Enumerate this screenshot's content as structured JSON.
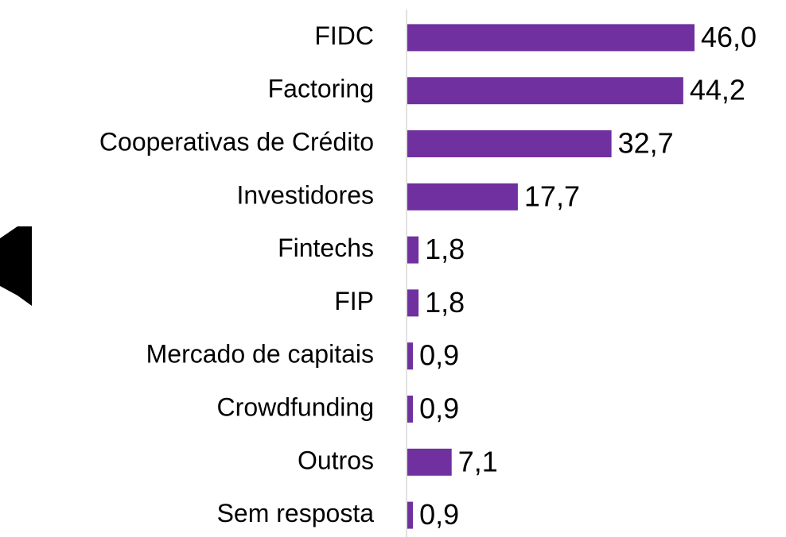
{
  "chart_data": {
    "type": "barh",
    "categories": [
      "FIDC",
      "Factoring",
      "Cooperativas de Crédito",
      "Investidores",
      "Fintechs",
      "FIP",
      "Mercado de capitais",
      "Crowdfunding",
      "Outros",
      "Sem resposta"
    ],
    "values": [
      46.0,
      44.2,
      32.7,
      17.7,
      1.8,
      1.8,
      0.9,
      0.9,
      7.1,
      0.9
    ],
    "value_labels": [
      "46,0",
      "44,2",
      "32,7",
      "17,7",
      "1,8",
      "1,8",
      "0,9",
      "0,9",
      "7,1",
      "0,9"
    ],
    "color": "#7030a0"
  }
}
